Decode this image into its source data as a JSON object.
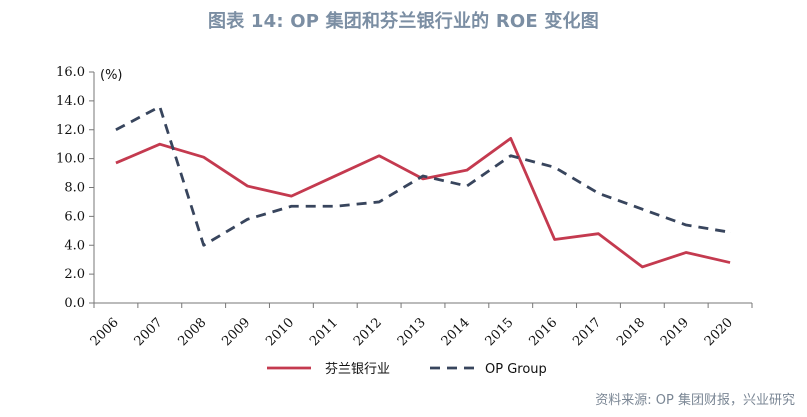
{
  "header": {
    "title": "图表 14: OP 集团和芬兰银行业的 ROE 变化图"
  },
  "chart_data": {
    "type": "line",
    "title": "图表 14: OP 集团和芬兰银行业的 ROE 变化图",
    "xlabel": "",
    "ylabel": "",
    "unit_label": "(%)",
    "categories": [
      "2006",
      "2007",
      "2008",
      "2009",
      "2010",
      "2011",
      "2012",
      "2013",
      "2014",
      "2015",
      "2016",
      "2017",
      "2018",
      "2019",
      "2020"
    ],
    "ylim": [
      0,
      16
    ],
    "y_ticks": [
      "0.0",
      "2.0",
      "4.0",
      "6.0",
      "8.0",
      "10.0",
      "12.0",
      "14.0",
      "16.0"
    ],
    "grid": false,
    "legend_position": "bottom",
    "series": [
      {
        "name": "芬兰银行业",
        "style": "solid",
        "color": "#c43a4f",
        "values": [
          9.7,
          11.0,
          10.1,
          8.1,
          7.4,
          8.8,
          10.2,
          8.6,
          9.2,
          11.4,
          4.4,
          4.8,
          2.5,
          3.5,
          2.8
        ]
      },
      {
        "name": "OP Group",
        "style": "dashed",
        "color": "#38455d",
        "values": [
          12.0,
          13.6,
          4.0,
          5.8,
          6.7,
          6.7,
          7.0,
          8.8,
          8.1,
          10.2,
          9.4,
          7.6,
          6.5,
          5.4,
          4.9
        ]
      }
    ]
  },
  "footer": {
    "source": "资料来源: OP 集团财报，兴业研究"
  }
}
